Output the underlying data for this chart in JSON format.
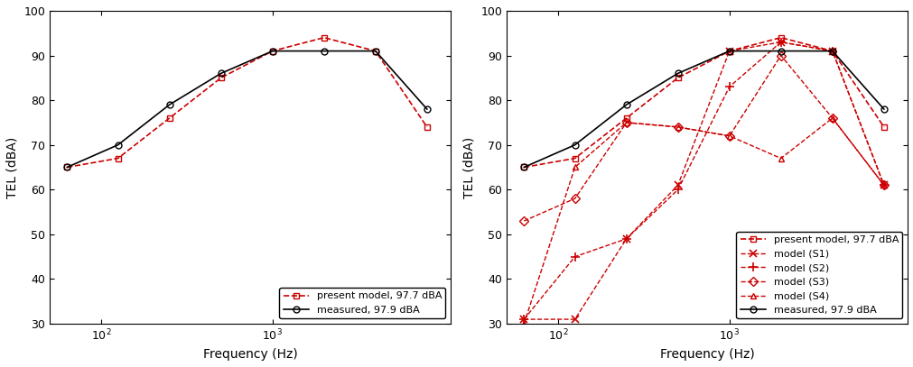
{
  "freqs": [
    63,
    125,
    250,
    500,
    1000,
    2000,
    4000,
    8000
  ],
  "present_model": [
    65,
    67,
    76,
    85,
    91,
    94,
    91,
    74
  ],
  "measured": [
    65,
    70,
    79,
    86,
    91,
    91,
    91,
    78
  ],
  "S1": [
    31,
    31,
    49,
    61,
    91,
    93,
    91,
    61
  ],
  "S2": [
    31,
    45,
    49,
    60,
    83,
    93,
    91,
    61
  ],
  "S3": [
    53,
    58,
    75,
    74,
    72,
    90,
    76,
    61
  ],
  "S4": [
    30,
    65,
    75,
    74,
    72,
    67,
    76,
    61
  ],
  "ylim": [
    30,
    100
  ],
  "xlim_left": 50,
  "xlim_right": 11000,
  "ylabel": "TEL (dBA)",
  "xlabel": "Frequency (Hz)",
  "color_red": "#cc0000",
  "color_black": "#000000",
  "legend1": [
    "present model, 97.7 dBA",
    "measured, 97.9 dBA"
  ],
  "legend2": [
    "present model, 97.7 dBA",
    "model (S1)",
    "model (S2)",
    "model (S3)",
    "model (S4)",
    "measured, 97.9 dBA"
  ]
}
